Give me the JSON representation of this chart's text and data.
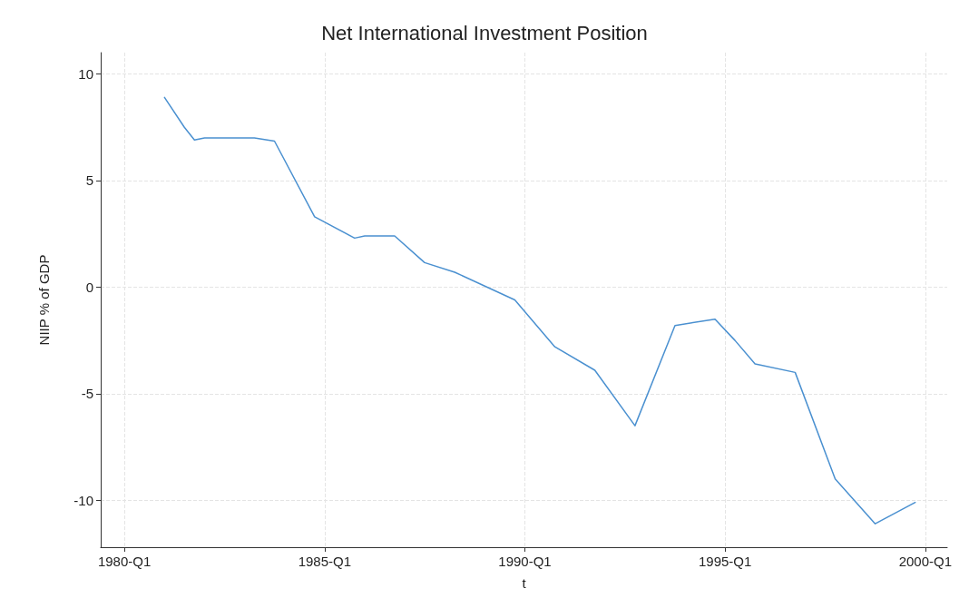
{
  "chart_data": {
    "type": "line",
    "title": "Net International Investment Position",
    "xlabel": "t",
    "ylabel": "NIIP % of GDP",
    "x": [
      "1981-01",
      "1981-07",
      "1981-10",
      "1982-01",
      "1983-04",
      "1983-10",
      "1984-10",
      "1985-10",
      "1986-01",
      "1986-10",
      "1987-07",
      "1988-04",
      "1989-10",
      "1990-10",
      "1991-10",
      "1992-10",
      "1993-10",
      "1994-10",
      "1995-04",
      "1995-10",
      "1996-10",
      "1997-10",
      "1998-10",
      "1999-10"
    ],
    "series": [
      {
        "color": "#4a90d0",
        "values": [
          8.9,
          7.5,
          6.9,
          7.0,
          7.0,
          6.85,
          3.3,
          2.3,
          2.4,
          2.4,
          1.15,
          0.7,
          -0.6,
          -2.8,
          -3.9,
          -6.5,
          -1.8,
          -1.5,
          -2.5,
          -3.6,
          -4.0,
          -9.0,
          -11.1,
          -10.1
        ]
      }
    ],
    "xlim": [
      "1979-05-30",
      "2000-07-19"
    ],
    "xticks": [
      {
        "value": "1980-01",
        "label": "1980-Q1"
      },
      {
        "value": "1985-01",
        "label": "1985-Q1"
      },
      {
        "value": "1990-01",
        "label": "1990-Q1"
      },
      {
        "value": "1995-01",
        "label": "1995-Q1"
      },
      {
        "value": "2000-01",
        "label": "2000-Q1"
      }
    ],
    "ylim": [
      -12.2,
      11
    ],
    "yticks": [
      -10,
      -5,
      0,
      5,
      10
    ],
    "grid": true,
    "marker": "none",
    "line_style": "solid"
  }
}
